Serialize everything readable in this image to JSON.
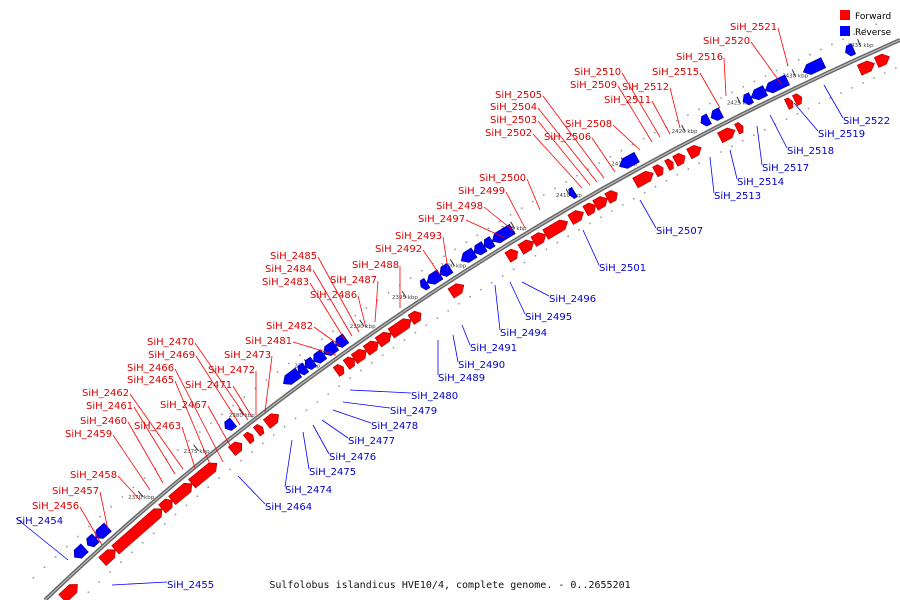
{
  "caption": "Sulfolobus islandicus HVE10/4, complete genome. - 0..2655201",
  "legend": [
    {
      "label": "Forward",
      "color": "#ff0000"
    },
    {
      "label": "Reverse",
      "color": "#0000ff"
    }
  ],
  "colors": {
    "forward": "#ff0000",
    "reverse": "#0000ff",
    "backbone": "#666666",
    "dots": "#999999"
  },
  "ticks": [
    "2370 kbp",
    "2375 kbp",
    "2380 kbp",
    "2385 kbp",
    "2390 kbp",
    "2395 kbp",
    "2400 kbp",
    "2405 kbp",
    "2410 kbp",
    "2415 kbp",
    "2420 kbp",
    "2425 kbp",
    "2430 kbp",
    "2435 kbp"
  ],
  "forward_labels": [
    "SiH_2456",
    "SiH_2457",
    "SiH_2458",
    "SiH_2459",
    "SiH_2460",
    "SiH_2461",
    "SiH_2462",
    "SiH_2463",
    "SiH_2465",
    "SiH_2466",
    "SiH_2467",
    "SiH_2469",
    "SiH_2470",
    "SiH_2471",
    "SiH_2472",
    "SiH_2473",
    "SiH_2481",
    "SiH_2482",
    "SiH_2483",
    "SiH_2484",
    "SiH_2485",
    "SiH_2486",
    "SiH_2487",
    "SiH_2488",
    "SiH_2492",
    "SiH_2493",
    "SiH_2497",
    "SiH_2498",
    "SiH_2499",
    "SiH_2500",
    "SiH_2502",
    "SiH_2503",
    "SiH_2504",
    "SiH_2505",
    "SiH_2506",
    "SiH_2508",
    "SiH_2509",
    "SiH_2510",
    "SiH_2511",
    "SiH_2512",
    "SiH_2515",
    "SiH_2516",
    "SiH_2520",
    "SiH_2521"
  ],
  "reverse_labels": [
    "SiH_2454",
    "SiH_2455",
    "SiH_2464",
    "SiH_2474",
    "SiH_2475",
    "SiH_2476",
    "SiH_2477",
    "SiH_2478",
    "SiH_2479",
    "SiH_2480",
    "SiH_2489",
    "SiH_2490",
    "SiH_2491",
    "SiH_2494",
    "SiH_2495",
    "SiH_2496",
    "SiH_2501",
    "SiH_2507",
    "SiH_2513",
    "SiH_2514",
    "SiH_2517",
    "SiH_2518",
    "SiH_2519",
    "SiH_2522"
  ]
}
